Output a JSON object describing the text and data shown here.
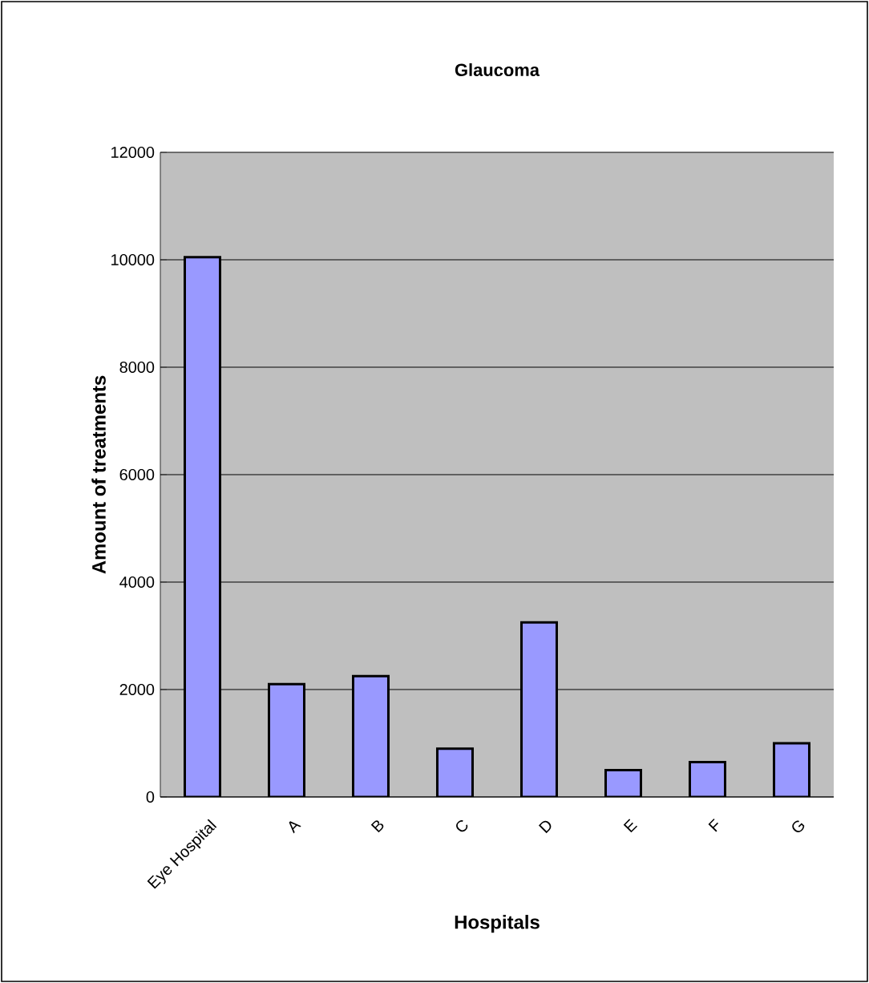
{
  "chart_data": {
    "type": "bar",
    "title": "Glaucoma",
    "xlabel": "Hospitals",
    "ylabel": "Amount of treatments",
    "categories": [
      "Eye Hospital",
      "A",
      "B",
      "C",
      "D",
      "E",
      "F",
      "G"
    ],
    "values": [
      10050,
      2100,
      2250,
      900,
      3250,
      500,
      650,
      1000
    ],
    "color": "#9999ff",
    "ylim": [
      0,
      12000
    ],
    "yticks": [
      0,
      2000,
      4000,
      6000,
      8000,
      10000,
      12000
    ],
    "grid": "y"
  }
}
